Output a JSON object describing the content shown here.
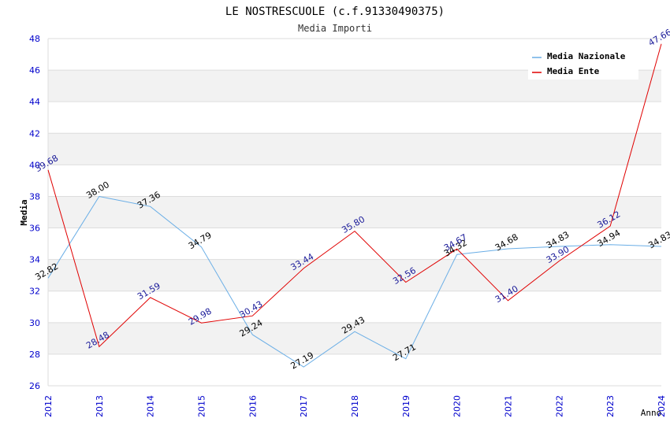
{
  "chart_data": {
    "type": "line",
    "title": "LE NOSTRESCUOLE (c.f.91330490375)",
    "subtitle": "Media Importi",
    "xlabel": "Anno",
    "ylabel": "Media",
    "ylim": [
      26,
      48
    ],
    "yticks": [
      "26",
      "28",
      "30",
      "32",
      "34",
      "36",
      "38",
      "40",
      "42",
      "44",
      "46",
      "48"
    ],
    "categories": [
      "2012",
      "2013",
      "2014",
      "2015",
      "2016",
      "2017",
      "2018",
      "2019",
      "2020",
      "2021",
      "2022",
      "2023",
      "2024"
    ],
    "grid": true,
    "legend_position": "top-right",
    "series": [
      {
        "name": "Media Nazionale",
        "color": "#6aaee6",
        "label_color": "#000000",
        "values": [
          32.82,
          38.0,
          37.36,
          34.79,
          29.24,
          27.19,
          29.43,
          27.71,
          34.32,
          34.68,
          34.83,
          34.94,
          34.83
        ],
        "labels": [
          "32.82",
          "38.00",
          "37.36",
          "34.79",
          "29.24",
          "27.19",
          "29.43",
          "27.71",
          "34.32",
          "34.68",
          "34.83",
          "34.94",
          "34.83"
        ]
      },
      {
        "name": "Media Ente",
        "color": "#e00000",
        "label_color": "#1a1a99",
        "values": [
          39.68,
          28.48,
          31.59,
          29.98,
          30.43,
          33.44,
          35.8,
          32.56,
          34.67,
          31.4,
          33.9,
          36.12,
          47.66
        ],
        "labels": [
          "39.68",
          "28.48",
          "31.59",
          "29.98",
          "30.43",
          "33.44",
          "35.80",
          "32.56",
          "34.67",
          "31.40",
          "33.90",
          "36.12",
          "47.66"
        ]
      }
    ]
  },
  "colors": {
    "axis_text": "#0000cc",
    "band": "#f2f2f2",
    "gridline": "#dddddd",
    "title": "#000000",
    "subtitle": "#333333"
  }
}
